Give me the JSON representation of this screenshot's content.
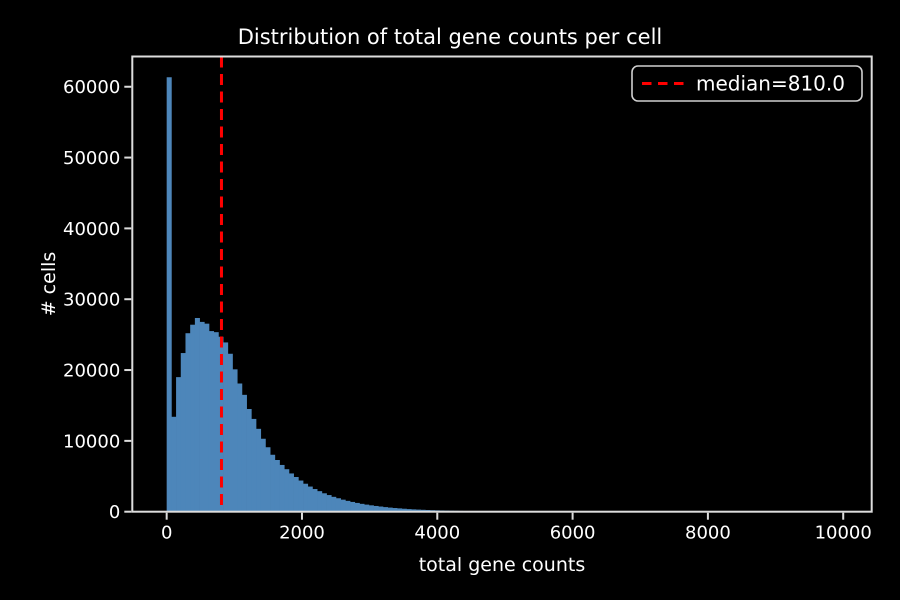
{
  "figure": {
    "background_color": "#000000",
    "text_color": "#ffffff",
    "spine_color": "#dddddd"
  },
  "chart_data": {
    "type": "bar",
    "subtype": "histogram",
    "title": "Distribution of total gene counts per cell",
    "xlabel": "total gene counts",
    "ylabel": "# cells",
    "grid": false,
    "legend_position": "upper right",
    "legend": {
      "label": "median=810.0",
      "line_style": "dashed",
      "line_color": "#ff0000"
    },
    "median": 810.0,
    "bar_color": "#4d86ba",
    "median_color": "#ff0000",
    "x_ticks": [
      0,
      2000,
      4000,
      6000,
      8000,
      10000
    ],
    "y_ticks": [
      0,
      10000,
      20000,
      30000,
      40000,
      50000,
      60000
    ],
    "xlim": [
      -508,
      10421
    ],
    "ylim": [
      0,
      64270
    ],
    "bin_start": 0,
    "bin_width": 69.5,
    "counts": [
      61340,
      13400,
      19000,
      22400,
      25200,
      26400,
      27350,
      26800,
      26550,
      25500,
      25350,
      24700,
      23900,
      22300,
      20100,
      18100,
      16500,
      14500,
      13100,
      11700,
      10300,
      9100,
      8040,
      7300,
      6600,
      6000,
      5400,
      4900,
      4400,
      3950,
      3550,
      3200,
      2900,
      2600,
      2350,
      2100,
      1900,
      1700,
      1530,
      1380,
      1240,
      1110,
      1000,
      900,
      810,
      730,
      650,
      580,
      520,
      470,
      420,
      370,
      330,
      300,
      270,
      240,
      215,
      195,
      175,
      155,
      140,
      125,
      110,
      100,
      90
    ]
  }
}
